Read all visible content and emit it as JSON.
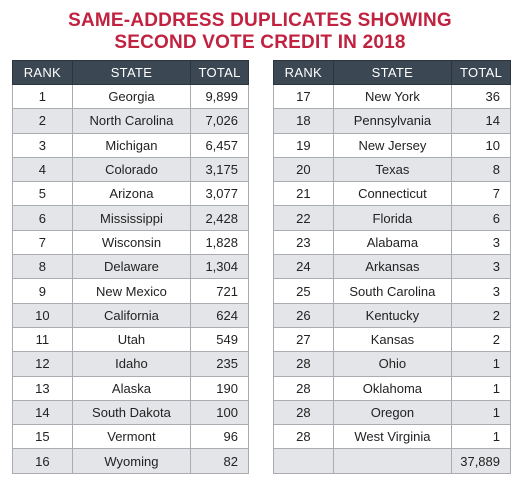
{
  "title": {
    "line1": "SAME-ADDRESS DUPLICATES SHOWING",
    "line2": "SECOND VOTE CREDIT IN 2018"
  },
  "headers": {
    "rank": "RANK",
    "state": "STATE",
    "total": "TOTAL"
  },
  "left_rows": [
    {
      "rank": "1",
      "state": "Georgia",
      "total": "9,899"
    },
    {
      "rank": "2",
      "state": "North Carolina",
      "total": "7,026"
    },
    {
      "rank": "3",
      "state": "Michigan",
      "total": "6,457"
    },
    {
      "rank": "4",
      "state": "Colorado",
      "total": "3,175"
    },
    {
      "rank": "5",
      "state": "Arizona",
      "total": "3,077"
    },
    {
      "rank": "6",
      "state": "Mississippi",
      "total": "2,428"
    },
    {
      "rank": "7",
      "state": "Wisconsin",
      "total": "1,828"
    },
    {
      "rank": "8",
      "state": "Delaware",
      "total": "1,304"
    },
    {
      "rank": "9",
      "state": "New Mexico",
      "total": "721"
    },
    {
      "rank": "10",
      "state": "California",
      "total": "624"
    },
    {
      "rank": "11",
      "state": "Utah",
      "total": "549"
    },
    {
      "rank": "12",
      "state": "Idaho",
      "total": "235"
    },
    {
      "rank": "13",
      "state": "Alaska",
      "total": "190"
    },
    {
      "rank": "14",
      "state": "South Dakota",
      "total": "100"
    },
    {
      "rank": "15",
      "state": "Vermont",
      "total": "96"
    },
    {
      "rank": "16",
      "state": "Wyoming",
      "total": "82"
    }
  ],
  "right_rows": [
    {
      "rank": "17",
      "state": "New York",
      "total": "36"
    },
    {
      "rank": "18",
      "state": "Pennsylvania",
      "total": "14"
    },
    {
      "rank": "19",
      "state": "New Jersey",
      "total": "10"
    },
    {
      "rank": "20",
      "state": "Texas",
      "total": "8"
    },
    {
      "rank": "21",
      "state": "Connecticut",
      "total": "7"
    },
    {
      "rank": "22",
      "state": "Florida",
      "total": "6"
    },
    {
      "rank": "23",
      "state": "Alabama",
      "total": "3"
    },
    {
      "rank": "24",
      "state": "Arkansas",
      "total": "3"
    },
    {
      "rank": "25",
      "state": "South Carolina",
      "total": "3"
    },
    {
      "rank": "26",
      "state": "Kentucky",
      "total": "2"
    },
    {
      "rank": "27",
      "state": "Kansas",
      "total": "2"
    },
    {
      "rank": "28",
      "state": "Ohio",
      "total": "1"
    },
    {
      "rank": "28",
      "state": "Oklahoma",
      "total": "1"
    },
    {
      "rank": "28",
      "state": "Oregon",
      "total": "1"
    },
    {
      "rank": "28",
      "state": "West Virginia",
      "total": "1"
    },
    {
      "rank": "",
      "state": "",
      "total": "37,889"
    }
  ],
  "colors": {
    "title": "#c1223f",
    "header_bg": "#3b4752",
    "alt_row_bg": "#e3e5e8",
    "border": "#a9acb0"
  }
}
